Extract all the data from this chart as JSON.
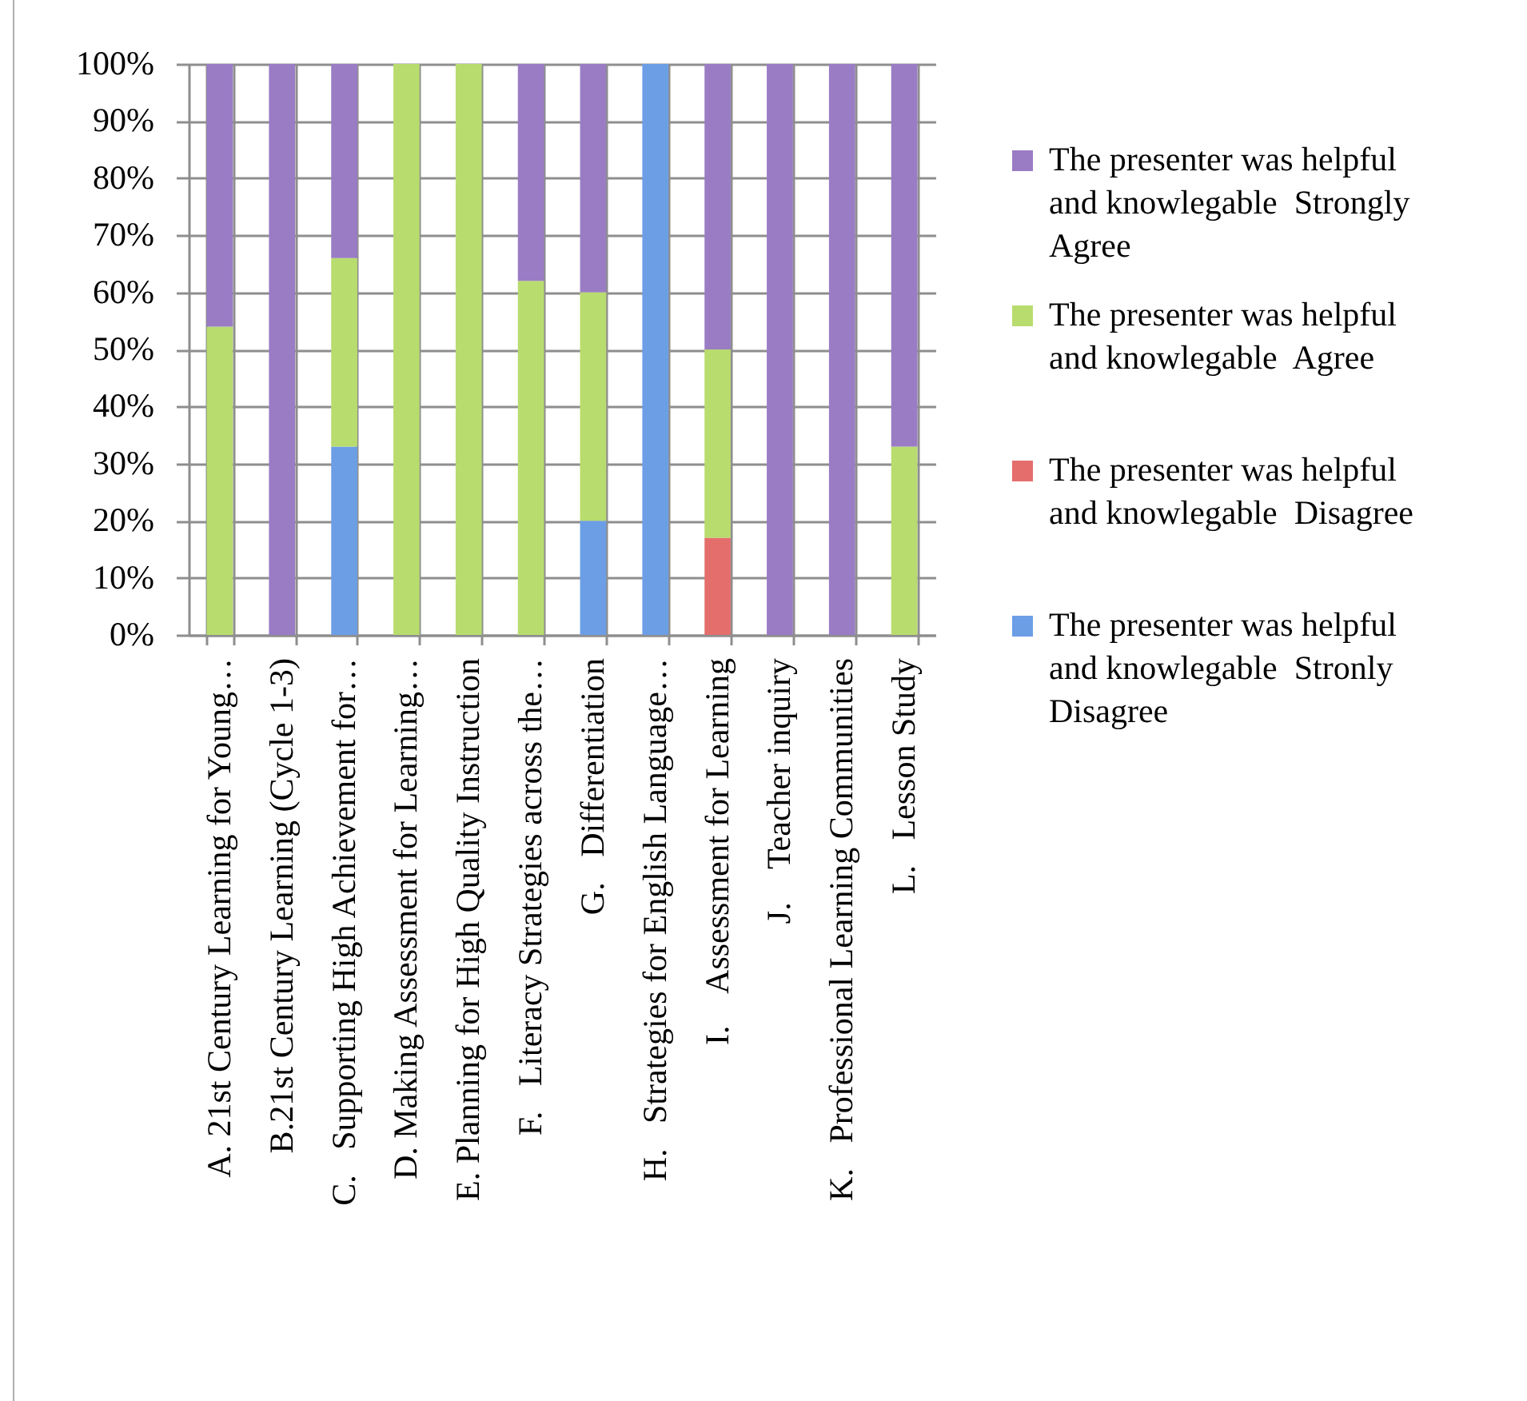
{
  "chart_data": {
    "type": "bar",
    "stacked": true,
    "categories": [
      "A. 21st Century Learning for Young…",
      "B.21st Century Learning (Cycle 1-3)",
      "C.   Supporting High Achievement for…",
      "D. Making Assessment for Learning…",
      "E. Planning for High Quality Instruction",
      "F.   Literacy Strategies across the…",
      "G.   Differentiation",
      "H.   Strategies for English Language…",
      "I.    Assessment for Learning",
      "J.    Teacher inquiry",
      "K.   Professional Learning Communities",
      "L.   Lesson Study"
    ],
    "series": [
      {
        "name": "The presenter was helpful and knowlegable  Stronly Disagree",
        "color": "#6c9ee6",
        "values": [
          null,
          null,
          33,
          null,
          null,
          null,
          20,
          100,
          null,
          null,
          null,
          null
        ]
      },
      {
        "name": "The presenter was helpful and knowlegable  Disagree",
        "color": "#e46e6c",
        "values": [
          null,
          null,
          null,
          null,
          null,
          null,
          null,
          null,
          17,
          null,
          null,
          null
        ]
      },
      {
        "name": "The presenter was helpful and knowlegable  Agree",
        "color": "#b8dc6e",
        "values": [
          54,
          null,
          33,
          100,
          100,
          62,
          40,
          null,
          33,
          null,
          null,
          33
        ]
      },
      {
        "name": "The presenter was helpful and knowlegable  Strongly Agree",
        "color": "#9a7cc4",
        "values": [
          46,
          100,
          34,
          null,
          null,
          38,
          40,
          null,
          50,
          100,
          100,
          67
        ]
      }
    ],
    "ylim": [
      0,
      100
    ],
    "yticks": [
      {
        "value": 0,
        "label": "0%"
      },
      {
        "value": 10,
        "label": "10%"
      },
      {
        "value": 20,
        "label": "20%"
      },
      {
        "value": 30,
        "label": "30%"
      },
      {
        "value": 40,
        "label": "40%"
      },
      {
        "value": 50,
        "label": "50%"
      },
      {
        "value": 60,
        "label": "60%"
      },
      {
        "value": 70,
        "label": "70%"
      },
      {
        "value": 80,
        "label": "80%"
      },
      {
        "value": 90,
        "label": "90%"
      },
      {
        "value": 100,
        "label": "100%"
      }
    ],
    "grid": true,
    "legend": "right"
  }
}
